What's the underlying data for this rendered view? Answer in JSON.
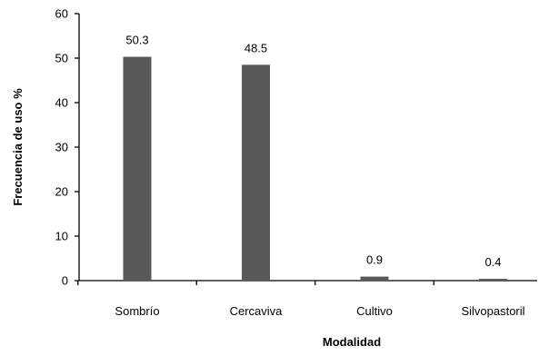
{
  "chart_data": {
    "type": "bar",
    "title": "",
    "xlabel": "Modalidad",
    "ylabel": "Frecuencia de uso %",
    "categories": [
      "Sombrío",
      "Cercaviva",
      "Cultivo",
      "Silvopastoril"
    ],
    "values": [
      50.3,
      48.5,
      0.9,
      0.4
    ],
    "data_labels": [
      "50.3",
      "48.5",
      "0.9",
      "0.4"
    ],
    "ylim": [
      0,
      60
    ],
    "yticks": [
      0,
      10,
      20,
      30,
      40,
      50,
      60
    ],
    "grid": false,
    "legend": "none",
    "bar_color": "#595959",
    "axis_color": "#000000"
  }
}
